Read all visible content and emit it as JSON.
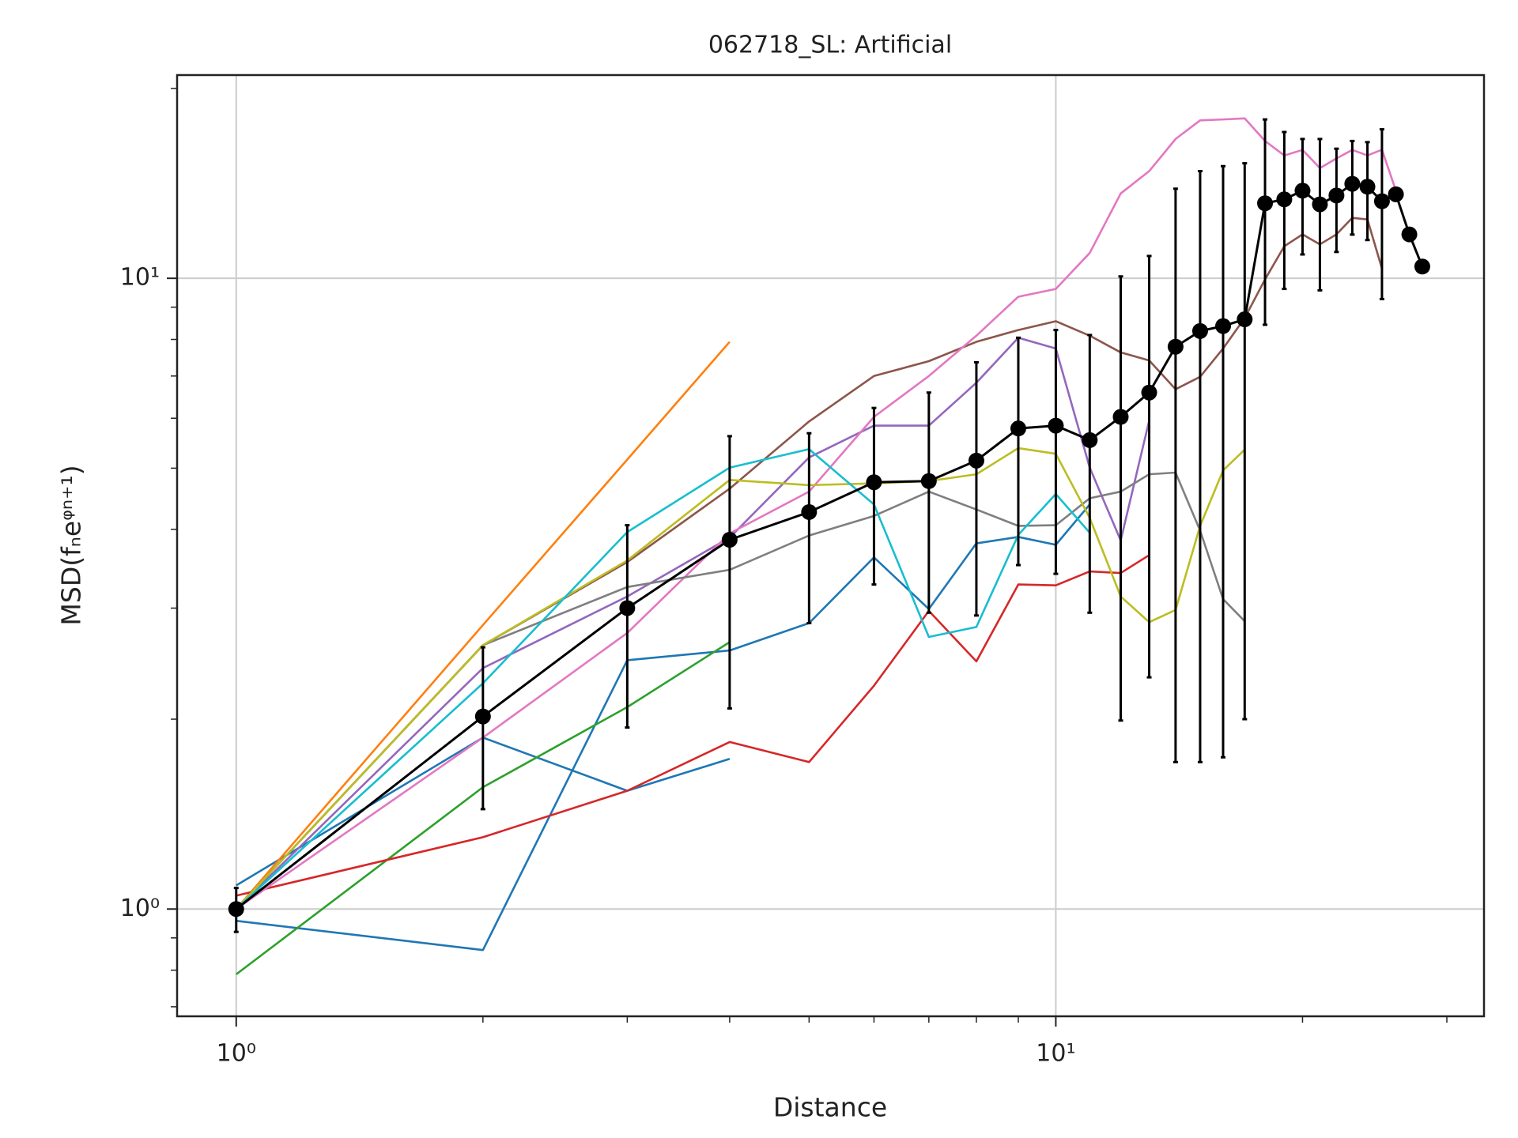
{
  "chart_data": {
    "type": "line",
    "title": "062718_SL: Artificial",
    "xlabel": "Distance",
    "ylabel": "MSD(fₙeᵠⁿ⁺¹)",
    "xscale": "log",
    "yscale": "log",
    "grid": true,
    "xlim": [
      0.847,
      33.3
    ],
    "ylim": [
      0.676,
      21.0
    ],
    "xticks": [
      {
        "value": 1,
        "label": "10⁰"
      },
      {
        "value": 10,
        "label": "10¹"
      }
    ],
    "yticks": [
      {
        "value": 1,
        "label": "10⁰"
      },
      {
        "value": 10,
        "label": "10¹"
      }
    ],
    "xminorticks": [
      2,
      3,
      4,
      5,
      6,
      7,
      8,
      9,
      20,
      30
    ],
    "yminorticks": [
      0.7,
      0.8,
      0.9,
      2,
      3,
      4,
      5,
      6,
      7,
      8,
      9,
      20
    ],
    "series": [
      {
        "color": "#1f77b4",
        "x": [
          1,
          2,
          3,
          4
        ],
        "values": [
          1.09,
          1.87,
          1.54,
          1.73
        ]
      },
      {
        "color": "#1f77b4",
        "x": [
          1,
          2,
          3,
          4,
          5,
          6,
          7,
          8,
          9,
          10,
          11
        ],
        "values": [
          0.958,
          0.861,
          2.48,
          2.57,
          2.84,
          3.61,
          2.99,
          3.8,
          3.89,
          3.78,
          4.38
        ]
      },
      {
        "color": "#ff7f0e",
        "x": [
          1,
          2,
          3,
          4
        ],
        "values": [
          1.0,
          2.82,
          5.16,
          7.93
        ]
      },
      {
        "color": "#2ca02c",
        "x": [
          1,
          2,
          3,
          4
        ],
        "values": [
          0.788,
          1.56,
          2.09,
          2.65
        ]
      },
      {
        "color": "#d62728",
        "x": [
          1,
          2,
          3,
          4,
          5,
          6,
          7,
          8,
          9,
          10,
          11,
          12,
          13
        ],
        "values": [
          1.05,
          1.3,
          1.54,
          1.84,
          1.71,
          2.26,
          2.97,
          2.47,
          3.27,
          3.26,
          3.43,
          3.41,
          3.64
        ]
      },
      {
        "color": "#9467bd",
        "x": [
          1,
          2,
          3,
          4,
          5,
          6,
          7,
          8,
          9,
          10,
          11,
          12,
          13
        ],
        "values": [
          1.0,
          2.41,
          3.13,
          3.88,
          5.2,
          5.84,
          5.84,
          6.83,
          8.05,
          7.74,
          5.01,
          3.84,
          5.95
        ]
      },
      {
        "color": "#8c564b",
        "x": [
          1,
          2,
          3,
          4,
          5,
          6,
          7,
          8,
          9,
          10,
          11,
          12,
          13,
          14,
          15,
          16,
          17,
          18,
          19,
          20,
          21,
          22,
          23,
          24,
          25
        ],
        "values": [
          1.0,
          2.62,
          3.55,
          4.64,
          5.93,
          7.0,
          7.39,
          7.93,
          8.28,
          8.55,
          8.11,
          7.63,
          7.41,
          6.67,
          6.98,
          7.74,
          8.65,
          9.96,
          11.24,
          11.74,
          11.32,
          11.74,
          12.47,
          12.4,
          10.36
        ]
      },
      {
        "color": "#e377c2",
        "x": [
          1,
          2,
          3,
          4,
          5,
          6,
          7,
          8,
          9,
          10,
          11,
          12,
          13,
          14,
          15,
          16,
          17,
          18,
          19,
          20,
          21,
          22,
          23,
          24,
          25,
          26
        ],
        "values": [
          1.0,
          1.87,
          2.74,
          3.94,
          4.59,
          6.03,
          7.0,
          8.11,
          9.35,
          9.62,
          10.97,
          13.63,
          14.79,
          16.63,
          17.8,
          17.86,
          17.93,
          16.51,
          15.66,
          15.98,
          14.95,
          15.49,
          15.98,
          15.66,
          15.99,
          13.77
        ]
      },
      {
        "color": "#7f7f7f",
        "x": [
          1,
          2,
          3,
          4,
          5,
          6,
          7,
          8,
          9,
          10,
          11,
          12,
          13,
          14,
          15,
          16,
          17
        ],
        "values": [
          1.0,
          2.62,
          3.24,
          3.45,
          3.91,
          4.2,
          4.59,
          4.3,
          4.05,
          4.06,
          4.48,
          4.59,
          4.89,
          4.92,
          3.98,
          3.1,
          2.86
        ]
      },
      {
        "color": "#bcbd22",
        "x": [
          1,
          2,
          3,
          4,
          5,
          6,
          7,
          8,
          9,
          10,
          11,
          12,
          13,
          14,
          15,
          16,
          17
        ],
        "values": [
          1.0,
          2.62,
          3.57,
          4.79,
          4.7,
          4.73,
          4.77,
          4.89,
          5.38,
          5.27,
          4.17,
          3.13,
          2.85,
          2.98,
          4.05,
          4.96,
          5.35
        ]
      },
      {
        "color": "#17becf",
        "x": [
          1,
          2,
          3,
          4,
          5,
          6,
          7,
          8,
          9,
          10,
          11
        ],
        "values": [
          1.0,
          2.28,
          3.96,
          5.01,
          5.36,
          4.38,
          2.7,
          2.8,
          3.92,
          4.55,
          3.95
        ]
      },
      {
        "color": "#000000",
        "markers": true,
        "x": [
          1,
          2,
          3,
          4,
          5,
          6,
          7,
          8,
          9,
          10,
          11,
          12,
          13,
          14,
          15,
          16,
          17,
          18,
          19,
          20,
          21,
          22,
          23,
          24,
          25,
          26,
          27,
          28
        ],
        "values": [
          1.0,
          2.02,
          3.0,
          3.85,
          4.26,
          4.75,
          4.77,
          5.14,
          5.78,
          5.84,
          5.54,
          6.03,
          6.59,
          7.79,
          8.25,
          8.4,
          8.61,
          13.15,
          13.34,
          13.77,
          13.1,
          13.53,
          14.12,
          13.97,
          13.25,
          13.59,
          11.74,
          10.44
        ],
        "yerr": [
          0.08,
          0.58,
          1.06,
          1.77,
          1.42,
          1.48,
          1.82,
          2.22,
          2.27,
          2.44,
          2.59,
          4.04,
          4.26,
          6.08,
          6.54,
          6.66,
          6.61,
          4.71,
          3.72,
          2.86,
          3.53,
          2.52,
          2.39,
          2.47,
          3.98,
          null,
          null,
          null
        ]
      }
    ]
  }
}
